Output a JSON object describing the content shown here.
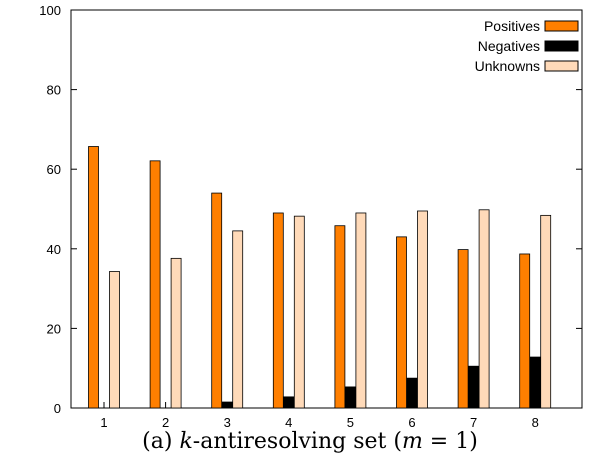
{
  "chart_data": {
    "type": "bar",
    "categories": [
      "1",
      "2",
      "3",
      "4",
      "5",
      "6",
      "7",
      "8"
    ],
    "series": [
      {
        "name": "Positives",
        "color": "#ff7f00",
        "values": [
          65.7,
          62.1,
          54.0,
          49.0,
          45.8,
          43.0,
          39.8,
          38.7
        ]
      },
      {
        "name": "Negatives",
        "color": "#000000",
        "values": [
          0.0,
          0.1,
          1.5,
          2.8,
          5.3,
          7.5,
          10.5,
          12.8
        ]
      },
      {
        "name": "Unknowns",
        "color": "#ffdab9",
        "values": [
          34.3,
          37.6,
          44.5,
          48.2,
          49.0,
          49.5,
          49.8,
          48.4
        ]
      }
    ],
    "ylim": [
      0,
      100
    ],
    "yticks": [
      "0",
      "20",
      "40",
      "60",
      "80",
      "100"
    ],
    "legend_position": "top-right",
    "grid": false
  },
  "caption": {
    "prefix": "(a) ",
    "k": "k",
    "mid": "-antiresolving set (",
    "m": "m",
    "suffix": " = 1)"
  }
}
